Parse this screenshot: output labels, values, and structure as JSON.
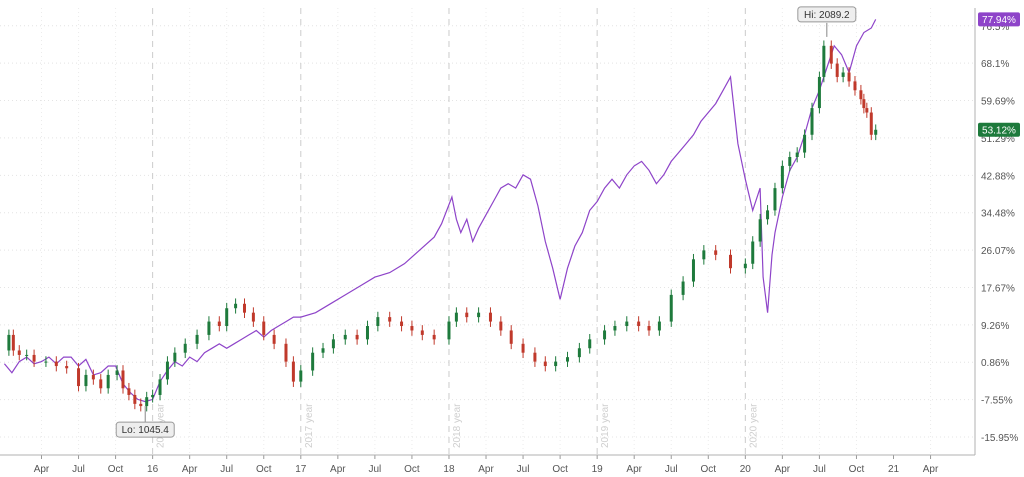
{
  "chart_data": {
    "type": "line",
    "y_axis": {
      "side": "right",
      "unit": "percent",
      "ticks": [
        "76.5%",
        "68.1%",
        "59.69%",
        "51.29%",
        "42.88%",
        "34.48%",
        "26.07%",
        "17.67%",
        "9.26%",
        "0.86%",
        "-7.55%",
        "-15.95%"
      ],
      "ylim": [
        -20.0,
        80.5
      ]
    },
    "x_axis": {
      "tick_labels": [
        "Apr",
        "Jul",
        "Oct",
        "16",
        "Apr",
        "Jul",
        "Oct",
        "17",
        "Apr",
        "Jul",
        "Oct",
        "18",
        "Apr",
        "Jul",
        "Oct",
        "19",
        "Apr",
        "Jul",
        "Oct",
        "20",
        "Apr",
        "Jul",
        "Oct",
        "21",
        "Apr"
      ],
      "tick_positions": [
        2015.25,
        2015.5,
        2015.75,
        2016.0,
        2016.25,
        2016.5,
        2016.75,
        2017.0,
        2017.25,
        2017.5,
        2017.75,
        2018.0,
        2018.25,
        2018.5,
        2018.75,
        2019.0,
        2019.25,
        2019.5,
        2019.75,
        2020.0,
        2020.25,
        2020.5,
        2020.75,
        2021.0,
        2021.25
      ],
      "xlim": [
        2014.97,
        2021.55
      ],
      "year_labels": [
        {
          "text": "2016 year",
          "x": 2016.0
        },
        {
          "text": "2017 year",
          "x": 2017.0
        },
        {
          "text": "2018 year",
          "x": 2018.0
        },
        {
          "text": "2019 year",
          "x": 2019.0
        },
        {
          "text": "2020 year",
          "x": 2020.0
        }
      ]
    },
    "grid": true,
    "series": [
      {
        "style": "candlestick",
        "up_color": "#1e7a3c",
        "down_color": "#c0392b",
        "x": [
          2015.0,
          2015.03,
          2015.06,
          2015.1,
          2015.15,
          2015.2,
          2015.28,
          2015.35,
          2015.42,
          2015.5,
          2015.55,
          2015.6,
          2015.65,
          2015.7,
          2015.76,
          2015.8,
          2015.84,
          2015.88,
          2015.92,
          2015.96,
          2016.0,
          2016.05,
          2016.1,
          2016.15,
          2016.22,
          2016.3,
          2016.38,
          2016.45,
          2016.5,
          2016.56,
          2016.62,
          2016.68,
          2016.75,
          2016.82,
          2016.9,
          2016.95,
          2017.0,
          2017.08,
          2017.15,
          2017.22,
          2017.3,
          2017.38,
          2017.45,
          2017.52,
          2017.6,
          2017.68,
          2017.75,
          2017.82,
          2017.9,
          2018.0,
          2018.05,
          2018.12,
          2018.2,
          2018.28,
          2018.35,
          2018.42,
          2018.5,
          2018.58,
          2018.65,
          2018.72,
          2018.8,
          2018.88,
          2018.95,
          2019.05,
          2019.12,
          2019.2,
          2019.28,
          2019.35,
          2019.42,
          2019.5,
          2019.58,
          2019.65,
          2019.72,
          2019.8,
          2019.9,
          2020.0,
          2020.05,
          2020.1,
          2020.15,
          2020.2,
          2020.25,
          2020.3,
          2020.35,
          2020.4,
          2020.45,
          2020.5,
          2020.53,
          2020.58,
          2020.62,
          2020.66,
          2020.7,
          2020.74,
          2020.78,
          2020.8,
          2020.82,
          2020.85,
          2020.88
        ],
        "values": [
          3.5,
          7.0,
          3.5,
          2.5,
          2.5,
          1.0,
          1.0,
          0.0,
          -0.5,
          -4.5,
          -2.0,
          -3.0,
          -5.0,
          -2.0,
          -1.0,
          -5.0,
          -6.5,
          -8.5,
          -9.0,
          -7.0,
          -6.5,
          -3.0,
          1.0,
          3.0,
          5.0,
          7.0,
          10.0,
          9.0,
          13.0,
          14.0,
          12.0,
          10.0,
          7.0,
          5.0,
          1.0,
          -3.5,
          -1.0,
          3.0,
          4.0,
          6.0,
          7.0,
          6.0,
          9.0,
          11.0,
          10.0,
          9.0,
          8.0,
          7.0,
          6.0,
          10.0,
          12.0,
          11.0,
          12.0,
          10.0,
          8.0,
          5.0,
          3.0,
          1.0,
          0.0,
          1.0,
          2.0,
          4.0,
          6.0,
          8.0,
          9.0,
          10.0,
          9.0,
          8.0,
          10.0,
          16.0,
          19.0,
          24.0,
          26.0,
          25.0,
          22.0,
          23.0,
          28.0,
          33.0,
          35.0,
          40.0,
          45.0,
          47.0,
          48.0,
          52.0,
          58.0,
          65.0,
          72.0,
          68.0,
          65.0,
          66.0,
          64.0,
          62.0,
          60.0,
          58.0,
          57.0,
          52.0,
          53.12
        ]
      },
      {
        "style": "line",
        "color": "#8e44c9",
        "x": [
          2015.0,
          2015.05,
          2015.1,
          2015.15,
          2015.2,
          2015.25,
          2015.3,
          2015.35,
          2015.4,
          2015.45,
          2015.5,
          2015.55,
          2015.6,
          2015.65,
          2015.7,
          2015.75,
          2015.8,
          2015.85,
          2015.9,
          2015.95,
          2016.0,
          2016.05,
          2016.1,
          2016.15,
          2016.2,
          2016.25,
          2016.3,
          2016.35,
          2016.4,
          2016.45,
          2016.5,
          2016.55,
          2016.6,
          2016.65,
          2016.7,
          2016.75,
          2016.8,
          2016.85,
          2016.9,
          2016.95,
          2017.0,
          2017.1,
          2017.2,
          2017.3,
          2017.4,
          2017.5,
          2017.6,
          2017.7,
          2017.8,
          2017.9,
          2017.95,
          2018.02,
          2018.05,
          2018.08,
          2018.12,
          2018.16,
          2018.2,
          2018.25,
          2018.3,
          2018.35,
          2018.4,
          2018.45,
          2018.5,
          2018.55,
          2018.6,
          2018.65,
          2018.7,
          2018.75,
          2018.8,
          2018.85,
          2018.9,
          2018.95,
          2019.0,
          2019.05,
          2019.1,
          2019.15,
          2019.2,
          2019.25,
          2019.3,
          2019.35,
          2019.4,
          2019.45,
          2019.5,
          2019.55,
          2019.6,
          2019.65,
          2019.7,
          2019.75,
          2019.8,
          2019.85,
          2019.9,
          2019.95,
          2020.0,
          2020.05,
          2020.1,
          2020.12,
          2020.15,
          2020.18,
          2020.2,
          2020.25,
          2020.3,
          2020.35,
          2020.4,
          2020.45,
          2020.5,
          2020.55,
          2020.6,
          2020.65,
          2020.7,
          2020.75,
          2020.8,
          2020.85,
          2020.88
        ],
        "values": [
          0.5,
          -1.5,
          1.0,
          2.0,
          0.5,
          1.0,
          2.0,
          0.5,
          2.0,
          2.0,
          0.0,
          1.5,
          -2.0,
          -1.5,
          0.0,
          0.0,
          -4.0,
          -6.0,
          -7.5,
          -8.0,
          -7.5,
          -3.5,
          -1.0,
          1.0,
          0.0,
          2.0,
          1.0,
          3.0,
          4.0,
          5.0,
          4.0,
          5.0,
          6.0,
          7.0,
          8.0,
          6.5,
          8.0,
          9.0,
          10.0,
          11.0,
          11.0,
          12.0,
          14.0,
          16.0,
          18.0,
          20.0,
          21.0,
          23.0,
          26.0,
          29.0,
          32.0,
          38.0,
          33.0,
          30.0,
          33.0,
          28.0,
          31.0,
          34.0,
          37.0,
          40.0,
          41.0,
          40.0,
          43.0,
          42.0,
          36.0,
          28.0,
          22.0,
          15.0,
          22.0,
          27.0,
          30.0,
          35.0,
          37.0,
          40.0,
          42.0,
          40.0,
          43.0,
          45.0,
          46.0,
          44.0,
          41.0,
          43.0,
          46.0,
          48.0,
          50.0,
          52.0,
          55.0,
          57.0,
          59.0,
          62.0,
          65.0,
          50.0,
          42.0,
          35.0,
          40.0,
          20.0,
          12.0,
          25.0,
          30.0,
          38.0,
          44.0,
          47.0,
          52.0,
          58.0,
          62.0,
          67.0,
          72.0,
          70.0,
          66.0,
          72.0,
          75.0,
          76.0,
          77.94
        ]
      }
    ],
    "last_value_badges": [
      {
        "text": "77.94%",
        "color": "#8e44c9",
        "y": 77.94
      },
      {
        "text": "53.12%",
        "color": "#1e7a3c",
        "y": 53.12
      }
    ],
    "annotations": [
      {
        "text": "Hi: 2089.2",
        "x": 2020.55,
        "y": 74.0
      },
      {
        "text": "Lo: 1045.4",
        "x": 2015.95,
        "y": -9.0
      }
    ]
  }
}
